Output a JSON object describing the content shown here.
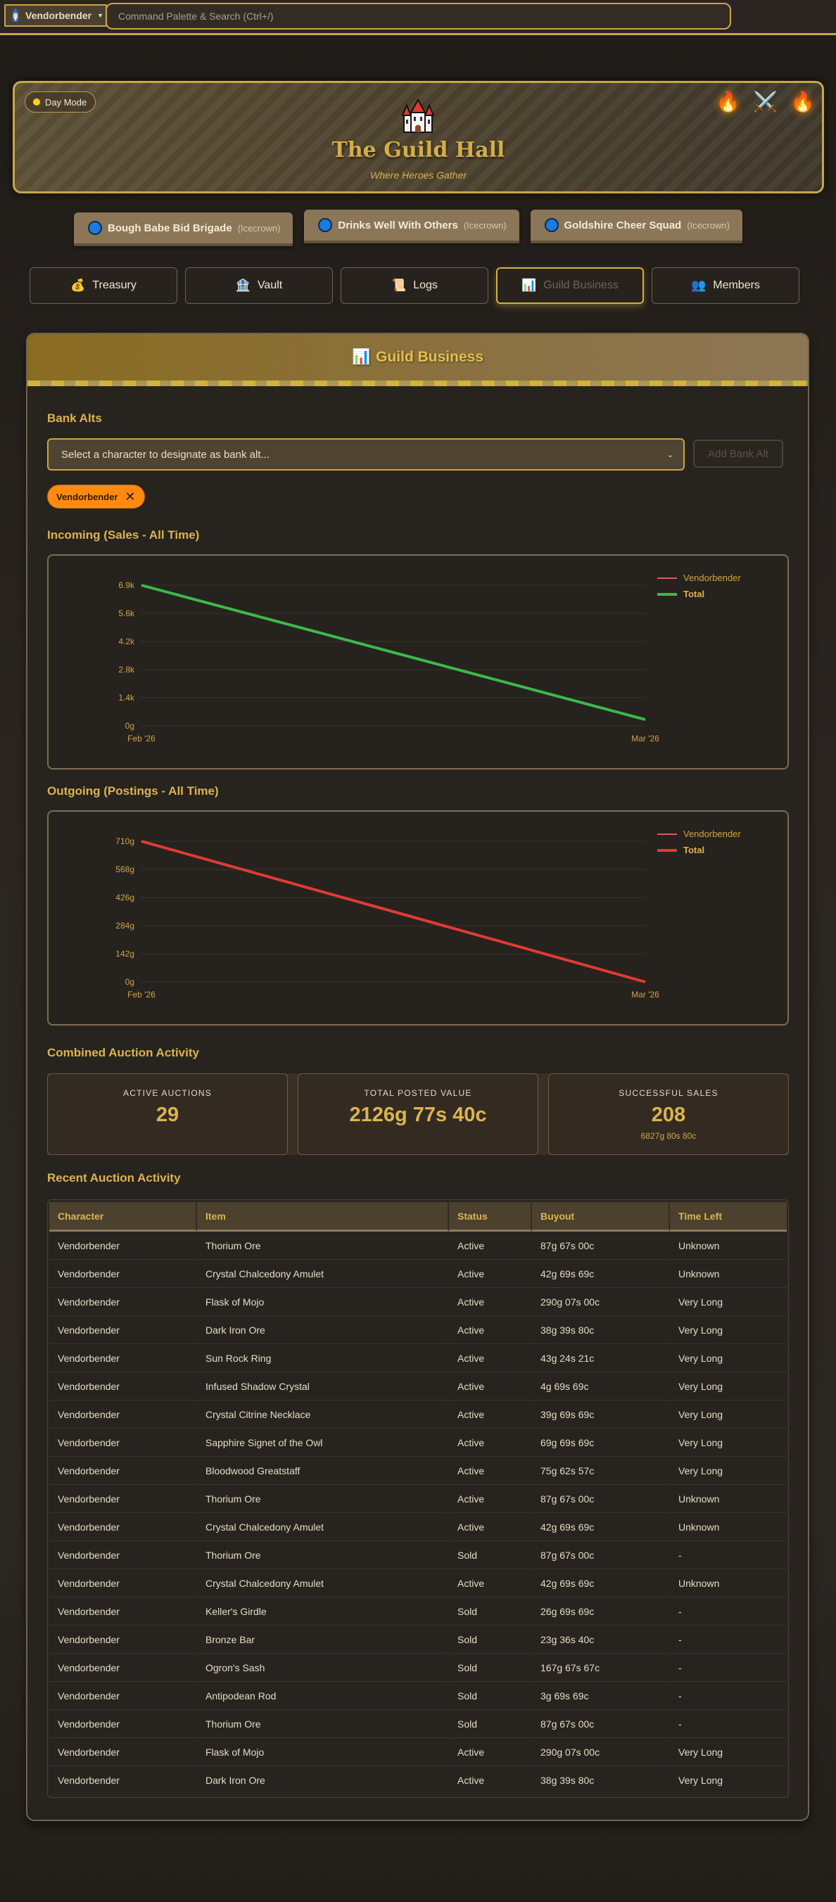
{
  "topbar": {
    "character": "Vendorbender",
    "character_icon": "wizard-icon",
    "search_placeholder": "Command Palette & Search (Ctrl+/)"
  },
  "hero": {
    "day_mode_label": "Day Mode",
    "title": "The Guild Hall",
    "subtitle": "Where Heroes Gather",
    "icons": [
      "castle-icon",
      "flame-icon",
      "crossed-swords-icon",
      "flame-icon"
    ]
  },
  "guilds": [
    {
      "name": "Bough Babe Bid Brigade",
      "realm": "(Icecrown)",
      "selected": true
    },
    {
      "name": "Drinks Well With Others",
      "realm": "(Icecrown)",
      "selected": false
    },
    {
      "name": "Goldshire Cheer Squad",
      "realm": "(Icecrown)",
      "selected": false
    }
  ],
  "nav": {
    "items": [
      {
        "label": "Treasury",
        "icon": "money-bag-icon",
        "glyph": "💰",
        "active": false
      },
      {
        "label": "Vault",
        "icon": "bank-icon",
        "glyph": "🏦",
        "active": false
      },
      {
        "label": "Logs",
        "icon": "scroll-icon",
        "glyph": "📜",
        "active": false
      },
      {
        "label": "Guild Business",
        "icon": "bar-chart-icon",
        "glyph": "📊",
        "active": true
      },
      {
        "label": "Members",
        "icon": "members-icon",
        "glyph": "👥",
        "active": false
      }
    ]
  },
  "card": {
    "title": "Guild Business",
    "title_glyph": "📊",
    "bank_alts": {
      "heading": "Bank Alts",
      "select_placeholder": "Select a character to designate as bank alt...",
      "add_button": "Add Bank Alt",
      "chips": [
        {
          "label": "Vendorbender",
          "remove": "✕"
        }
      ]
    },
    "incoming_heading": "Incoming (Sales - All Time)",
    "outgoing_heading": "Outgoing (Postings - All Time)",
    "combined_heading": "Combined Auction Activity",
    "stats": [
      {
        "label": "ACTIVE AUCTIONS",
        "value": "29",
        "sub": ""
      },
      {
        "label": "TOTAL POSTED VALUE",
        "value": "2126g 77s 40c",
        "sub": ""
      },
      {
        "label": "SUCCESSFUL SALES",
        "value": "208",
        "sub": "6827g 80s 80c"
      }
    ],
    "recent_heading": "Recent Auction Activity",
    "table": {
      "columns": [
        "Character",
        "Item",
        "Status",
        "Buyout",
        "Time Left"
      ],
      "rows": [
        [
          "Vendorbender",
          "Thorium Ore",
          "Active",
          "87g 67s 00c",
          "Unknown"
        ],
        [
          "Vendorbender",
          "Crystal Chalcedony Amulet",
          "Active",
          "42g 69s 69c",
          "Unknown"
        ],
        [
          "Vendorbender",
          "Flask of Mojo",
          "Active",
          "290g 07s 00c",
          "Very Long"
        ],
        [
          "Vendorbender",
          "Dark Iron Ore",
          "Active",
          "38g 39s 80c",
          "Very Long"
        ],
        [
          "Vendorbender",
          "Sun Rock Ring",
          "Active",
          "43g 24s 21c",
          "Very Long"
        ],
        [
          "Vendorbender",
          "Infused Shadow Crystal",
          "Active",
          "4g 69s 69c",
          "Very Long"
        ],
        [
          "Vendorbender",
          "Crystal Citrine Necklace",
          "Active",
          "39g 69s 69c",
          "Very Long"
        ],
        [
          "Vendorbender",
          "Sapphire Signet of the Owl",
          "Active",
          "69g 69s 69c",
          "Very Long"
        ],
        [
          "Vendorbender",
          "Bloodwood Greatstaff",
          "Active",
          "75g 62s 57c",
          "Very Long"
        ],
        [
          "Vendorbender",
          "Thorium Ore",
          "Active",
          "87g 67s 00c",
          "Unknown"
        ],
        [
          "Vendorbender",
          "Crystal Chalcedony Amulet",
          "Active",
          "42g 69s 69c",
          "Unknown"
        ],
        [
          "Vendorbender",
          "Thorium Ore",
          "Sold",
          "87g 67s 00c",
          "-"
        ],
        [
          "Vendorbender",
          "Crystal Chalcedony Amulet",
          "Active",
          "42g 69s 69c",
          "Unknown"
        ],
        [
          "Vendorbender",
          "Keller's Girdle",
          "Sold",
          "26g 69s 69c",
          "-"
        ],
        [
          "Vendorbender",
          "Bronze Bar",
          "Sold",
          "23g 36s 40c",
          "-"
        ],
        [
          "Vendorbender",
          "Ogron's Sash",
          "Sold",
          "167g 67s 67c",
          "-"
        ],
        [
          "Vendorbender",
          "Antipodean Rod",
          "Sold",
          "3g 69s 69c",
          "-"
        ],
        [
          "Vendorbender",
          "Thorium Ore",
          "Sold",
          "87g 67s 00c",
          "-"
        ],
        [
          "Vendorbender",
          "Flask of Mojo",
          "Active",
          "290g 07s 00c",
          "Very Long"
        ],
        [
          "Vendorbender",
          "Dark Iron Ore",
          "Active",
          "38g 39s 80c",
          "Very Long"
        ]
      ]
    }
  },
  "colors": {
    "accent_gold": "#c9a646",
    "incoming_line": "#3cb94a",
    "outgoing_line": "#e03a35",
    "vendorbender_legend": "#e05a5a",
    "chip_orange": "#ff8a12",
    "guild_dot": "#1a7be3"
  },
  "chart_data": [
    {
      "type": "line",
      "title": "Incoming (Sales - All Time)",
      "x": [
        "Feb '26",
        "Mar '26"
      ],
      "series": [
        {
          "name": "Vendorbender",
          "values": [
            6900,
            400
          ],
          "color": "#e05a5a"
        },
        {
          "name": "Total",
          "values": [
            6900,
            400
          ],
          "color": "#3cb94a"
        }
      ],
      "yticks": [
        "0g",
        "1.4k",
        "2.8k",
        "4.2k",
        "5.6k",
        "6.9k"
      ],
      "ylim": [
        0,
        6900
      ],
      "grid": true,
      "legend_position": "top-right"
    },
    {
      "type": "line",
      "title": "Outgoing (Postings - All Time)",
      "x": [
        "Feb '26",
        "Mar '26"
      ],
      "series": [
        {
          "name": "Vendorbender",
          "values": [
            710,
            0
          ],
          "color": "#e05a5a"
        },
        {
          "name": "Total",
          "values": [
            710,
            0
          ],
          "color": "#e03a35"
        }
      ],
      "yticks": [
        "0g",
        "142g",
        "284g",
        "426g",
        "568g",
        "710g"
      ],
      "ylim": [
        0,
        710
      ],
      "grid": true,
      "legend_position": "top-right"
    }
  ]
}
